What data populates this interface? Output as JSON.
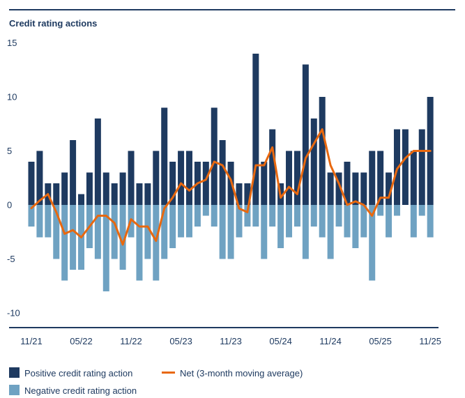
{
  "title": "Credit rating actions",
  "colors": {
    "positive": "#1e3a60",
    "negative": "#6fa2c2",
    "net": "#e8680f",
    "text": "#1e3a60",
    "axis": "#1e3a60"
  },
  "y_axis": {
    "ticks": [
      15,
      10,
      5,
      0,
      -5,
      -10
    ]
  },
  "x_axis": {
    "labels": [
      "11/21",
      "05/22",
      "11/22",
      "05/23",
      "11/23",
      "05/24",
      "11/24",
      "05/25",
      "11/25"
    ],
    "indices": [
      0,
      6,
      12,
      18,
      24,
      30,
      36,
      42,
      48
    ]
  },
  "legend": {
    "positive": "Positive credit rating action",
    "negative": "Negative credit rating action",
    "net": "Net (3-month moving average)"
  },
  "chart_data": {
    "type": "bar",
    "title": "Credit rating actions",
    "xlabel": "",
    "ylabel": "",
    "ylim": [
      -10,
      15
    ],
    "grid": false,
    "legend_position": "bottom",
    "months": [
      "11/21",
      "12/21",
      "01/22",
      "02/22",
      "03/22",
      "04/22",
      "05/22",
      "06/22",
      "07/22",
      "08/22",
      "09/22",
      "10/22",
      "11/22",
      "12/22",
      "01/23",
      "02/23",
      "03/23",
      "04/23",
      "05/23",
      "06/23",
      "07/23",
      "08/23",
      "09/23",
      "10/23",
      "11/23",
      "12/23",
      "01/24",
      "02/24",
      "03/24",
      "04/24",
      "05/24",
      "06/24",
      "07/24",
      "08/24",
      "09/24",
      "10/24",
      "11/24",
      "12/24",
      "01/25",
      "02/25",
      "03/25",
      "04/25",
      "05/25",
      "06/25",
      "07/25",
      "08/25",
      "09/25",
      "10/25",
      "11/25"
    ],
    "series": [
      {
        "name": "Positive credit rating action",
        "type": "bar",
        "values": [
          4,
          5,
          2,
          2,
          3,
          6,
          1,
          3,
          8,
          3,
          2,
          3,
          5,
          2,
          2,
          5,
          9,
          4,
          5,
          5,
          4,
          4,
          9,
          6,
          4,
          2,
          2,
          14,
          4,
          7,
          2,
          5,
          5,
          13,
          8,
          10,
          3,
          3,
          4,
          3,
          3,
          5,
          5,
          3,
          7,
          7,
          5,
          7,
          10
        ]
      },
      {
        "name": "Negative credit rating action",
        "type": "bar",
        "values": [
          -2,
          -3,
          -3,
          -5,
          -7,
          -6,
          -6,
          -4,
          -5,
          -8,
          -5,
          -6,
          -3,
          -7,
          -5,
          -7,
          -5,
          -4,
          -3,
          -3,
          -2,
          -1,
          -2,
          -5,
          -5,
          -3,
          -2,
          -2,
          -5,
          -2,
          -4,
          -3,
          -2,
          -5,
          -2,
          -3,
          -5,
          -2,
          -3,
          -4,
          -3,
          -7,
          -1,
          -3,
          -1,
          0,
          -3,
          -1,
          -3
        ]
      },
      {
        "name": "Net (3-month moving average)",
        "type": "line",
        "values": [
          -0.3,
          0.4,
          1,
          -0.67,
          -2.67,
          -2.33,
          -3,
          -2,
          -1,
          -1,
          -1.67,
          -3.67,
          -1.33,
          -2,
          -2,
          -3.33,
          -0.33,
          0.67,
          2,
          1.33,
          2,
          2.33,
          4,
          3.67,
          2.33,
          -0.33,
          -0.67,
          3.67,
          3.67,
          5.33,
          0.67,
          1.67,
          1,
          4.33,
          5.67,
          7,
          3.67,
          2,
          0,
          0.33,
          0,
          -1,
          0.67,
          0.67,
          3.33,
          4.33,
          5,
          5,
          5
        ]
      }
    ]
  }
}
